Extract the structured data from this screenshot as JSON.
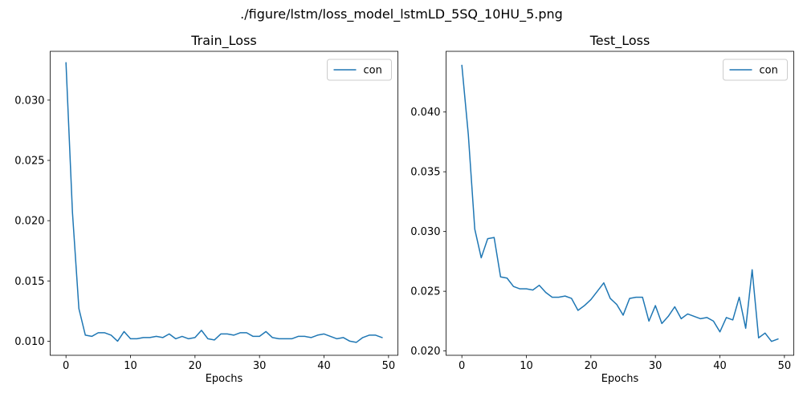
{
  "suptitle": "./figure/lstm/loss_model_lstmLD_5SQ_10HU_5.png",
  "colors": {
    "series": "#1f77b4",
    "axis": "#000000",
    "legend_border": "#cccccc"
  },
  "chart_data": [
    {
      "type": "line",
      "title": "Train_Loss",
      "xlabel": "Epochs",
      "ylabel": "",
      "xlim": [
        -2.45,
        51.45
      ],
      "ylim": [
        0.00883,
        0.03405
      ],
      "xticks": [
        0,
        10,
        20,
        30,
        40,
        50
      ],
      "xtick_labels": [
        "0",
        "10",
        "20",
        "30",
        "40",
        "50"
      ],
      "yticks": [
        0.01,
        0.015,
        0.02,
        0.025,
        0.03
      ],
      "ytick_labels": [
        "0.010",
        "0.015",
        "0.020",
        "0.025",
        "0.030"
      ],
      "grid": false,
      "legend_position": "top-right",
      "series": [
        {
          "name": "con",
          "x": [
            0,
            1,
            2,
            3,
            4,
            5,
            6,
            7,
            8,
            9,
            10,
            11,
            12,
            13,
            14,
            15,
            16,
            17,
            18,
            19,
            20,
            21,
            22,
            23,
            24,
            25,
            26,
            27,
            28,
            29,
            30,
            31,
            32,
            33,
            34,
            35,
            36,
            37,
            38,
            39,
            40,
            41,
            42,
            43,
            44,
            45,
            46,
            47,
            48,
            49
          ],
          "values": [
            0.0331,
            0.0207,
            0.0127,
            0.0105,
            0.0104,
            0.0107,
            0.0107,
            0.0105,
            0.01,
            0.0108,
            0.0102,
            0.0102,
            0.0103,
            0.0103,
            0.0104,
            0.0103,
            0.0106,
            0.0102,
            0.0104,
            0.0102,
            0.0103,
            0.0109,
            0.0102,
            0.0101,
            0.0106,
            0.0106,
            0.0105,
            0.0107,
            0.0107,
            0.0104,
            0.0104,
            0.0108,
            0.0103,
            0.0102,
            0.0102,
            0.0102,
            0.0104,
            0.0104,
            0.0103,
            0.0105,
            0.0106,
            0.0104,
            0.0102,
            0.0103,
            0.01,
            0.0099,
            0.0103,
            0.0105,
            0.0105,
            0.0103
          ]
        }
      ]
    },
    {
      "type": "line",
      "title": "Test_Loss",
      "xlabel": "Epochs",
      "ylabel": "",
      "xlim": [
        -2.45,
        51.45
      ],
      "ylim": [
        0.01964,
        0.04508
      ],
      "xticks": [
        0,
        10,
        20,
        30,
        40,
        50
      ],
      "xtick_labels": [
        "0",
        "10",
        "20",
        "30",
        "40",
        "50"
      ],
      "yticks": [
        0.02,
        0.025,
        0.03,
        0.035,
        0.04
      ],
      "ytick_labels": [
        "0.020",
        "0.025",
        "0.030",
        "0.035",
        "0.040"
      ],
      "grid": false,
      "legend_position": "top-right",
      "series": [
        {
          "name": "con",
          "x": [
            0,
            1,
            2,
            3,
            4,
            5,
            6,
            7,
            8,
            9,
            10,
            11,
            12,
            13,
            14,
            15,
            16,
            17,
            18,
            19,
            20,
            21,
            22,
            23,
            24,
            25,
            26,
            27,
            28,
            29,
            30,
            31,
            32,
            33,
            34,
            35,
            36,
            37,
            38,
            39,
            40,
            41,
            42,
            43,
            44,
            45,
            46,
            47,
            48,
            49
          ],
          "values": [
            0.0439,
            0.0381,
            0.0302,
            0.0278,
            0.0294,
            0.0295,
            0.0262,
            0.0261,
            0.0254,
            0.0252,
            0.0252,
            0.0251,
            0.0255,
            0.0249,
            0.0245,
            0.0245,
            0.0246,
            0.0244,
            0.0234,
            0.0238,
            0.0243,
            0.025,
            0.0257,
            0.0244,
            0.0239,
            0.023,
            0.0244,
            0.0245,
            0.0245,
            0.0225,
            0.0238,
            0.0223,
            0.0229,
            0.0237,
            0.0227,
            0.0231,
            0.0229,
            0.0227,
            0.0228,
            0.0225,
            0.0216,
            0.0228,
            0.0226,
            0.0245,
            0.0219,
            0.0268,
            0.0211,
            0.0215,
            0.0208,
            0.021
          ]
        }
      ]
    }
  ]
}
